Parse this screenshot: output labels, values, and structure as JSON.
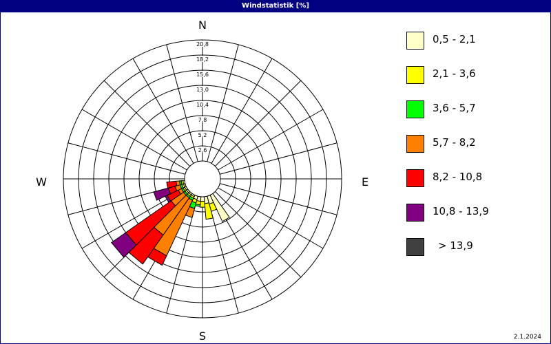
{
  "window": {
    "title": "Windstatistik [%]",
    "date": "2.1.2024"
  },
  "chart_data": {
    "type": "wind-rose",
    "title": "Windstatistik [%]",
    "directions": [
      "N",
      "E",
      "S",
      "W"
    ],
    "radial_ticks": [
      "2,6",
      "5,2",
      "7,8",
      "10,4",
      "13,0",
      "15,6",
      "18,2",
      "20,8"
    ],
    "rmax": 20.8,
    "sector_width_deg": 10,
    "speed_classes": [
      {
        "label": "0,5 - 2,1",
        "color": "#ffffc8"
      },
      {
        "label": "2,1 - 3,6",
        "color": "#ffff00"
      },
      {
        "label": "3,6 - 5,7",
        "color": "#00ff00"
      },
      {
        "label": "5,7 - 8,2",
        "color": "#ff8000"
      },
      {
        "label": "8,2 - 10,8",
        "color": "#ff0000"
      },
      {
        "label": "10,8 - 13,9",
        "color": "#800080"
      },
      {
        "label": "> 13,9",
        "color": "#404040"
      }
    ],
    "sectors": [
      {
        "direction_deg": 150,
        "values": [
          5.0,
          0,
          0,
          0,
          0,
          0,
          0
        ]
      },
      {
        "direction_deg": 160,
        "values": [
          1.4,
          1.3,
          0,
          0,
          0,
          0,
          0
        ]
      },
      {
        "direction_deg": 170,
        "values": [
          1.2,
          2.7,
          0,
          0,
          0,
          0,
          0
        ]
      },
      {
        "direction_deg": 180,
        "values": [
          0.8,
          1.0,
          0,
          0,
          0,
          0,
          0
        ]
      },
      {
        "direction_deg": 190,
        "values": [
          0.8,
          0.6,
          0.3,
          0,
          0,
          0,
          0
        ]
      },
      {
        "direction_deg": 200,
        "values": [
          0.6,
          0.6,
          1.0,
          1.6,
          0,
          0,
          0
        ]
      },
      {
        "direction_deg": 210,
        "values": [
          0.3,
          0.3,
          0.4,
          10.5,
          1.8,
          0,
          0
        ]
      },
      {
        "direction_deg": 220,
        "values": [
          0.3,
          0.3,
          0.3,
          7.8,
          6.1,
          0,
          0
        ]
      },
      {
        "direction_deg": 230,
        "values": [
          0.3,
          0.3,
          0.3,
          2.6,
          9.5,
          3.0,
          0
        ]
      },
      {
        "direction_deg": 240,
        "values": [
          0.3,
          0.3,
          0.3,
          0.6,
          2.1,
          0.4,
          0
        ]
      },
      {
        "direction_deg": 250,
        "values": [
          0.3,
          0.3,
          0.3,
          0.9,
          1.2,
          2.6,
          0
        ]
      },
      {
        "direction_deg": 260,
        "values": [
          0.3,
          0.3,
          0.3,
          0.6,
          1.6,
          0,
          0
        ]
      }
    ]
  }
}
